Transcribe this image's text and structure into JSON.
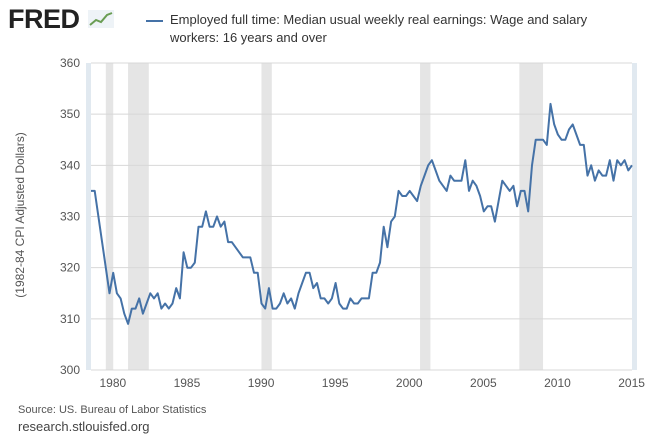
{
  "logo": "FRED",
  "colors": {
    "series": "#4572a7",
    "recession": "#e5e5e5",
    "grid": "#d8d8d8",
    "frame": "#e1e9f0"
  },
  "chart_data": {
    "type": "line",
    "legend": "Employed full time: Median usual weekly real earnings: Wage and salary workers: 16 years and over",
    "ylabel": "(1982-84 CPI Adjusted Dollars)",
    "xlabel": "",
    "ylim": [
      300,
      360
    ],
    "xlim": [
      1979,
      2015.5
    ],
    "grid": true,
    "yticks": [
      300,
      310,
      320,
      330,
      340,
      350,
      360
    ],
    "xticks": [
      1980,
      1985,
      1990,
      1995,
      2000,
      2005,
      2010,
      2015
    ],
    "frequency": "quarterly",
    "start": 1979,
    "series": [
      {
        "values": [
          335,
          335,
          330,
          325,
          320,
          315,
          319,
          315,
          314,
          311,
          309,
          312,
          312,
          314,
          311,
          313,
          315,
          314,
          315,
          312,
          313,
          312,
          313,
          316,
          314,
          323,
          320,
          320,
          321,
          328,
          328,
          331,
          328,
          328,
          330,
          328,
          329,
          325,
          325,
          324,
          323,
          322,
          322,
          322,
          319,
          319,
          313,
          312,
          316,
          312,
          312,
          313,
          315,
          313,
          314,
          312,
          315,
          317,
          319,
          319,
          316,
          317,
          314,
          314,
          313,
          314,
          317,
          313,
          312,
          312,
          314,
          313,
          313,
          314,
          314,
          314,
          319,
          319,
          321,
          328,
          324,
          329,
          330,
          335,
          334,
          334,
          335,
          334,
          333,
          336,
          338,
          340,
          341,
          339,
          337,
          336,
          335,
          338,
          337,
          337,
          337,
          341,
          335,
          337,
          336,
          334,
          331,
          332,
          332,
          329,
          333,
          337,
          336,
          335,
          336,
          332,
          335,
          335,
          331,
          340,
          345,
          345,
          345,
          344,
          352,
          348,
          346,
          345,
          345,
          347,
          348,
          346,
          344,
          344,
          338,
          340,
          337,
          339,
          338,
          338,
          341,
          337,
          341,
          340,
          341,
          339,
          340
        ]
      }
    ],
    "recessions": [
      [
        1980.0,
        1980.5
      ],
      [
        1981.5,
        1982.9
      ],
      [
        1990.5,
        1991.2
      ],
      [
        2001.2,
        2001.9
      ],
      [
        2007.9,
        2009.5
      ]
    ]
  },
  "footer": {
    "source": "Source: US. Bureau of Labor Statistics",
    "site": "research.stlouisfed.org"
  }
}
